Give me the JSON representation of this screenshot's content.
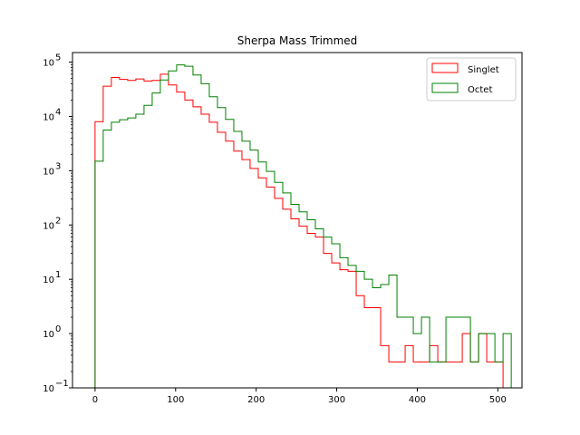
{
  "chart_data": {
    "type": "histogram",
    "title": "Sherpa Mass Trimmed",
    "xlabel": "",
    "ylabel": "",
    "x_ticks": [
      0,
      100,
      200,
      300,
      400,
      500
    ],
    "y_scale": "log",
    "y_ticks": [
      {
        "value": 0.1,
        "base": "10",
        "exp": "−1"
      },
      {
        "value": 1,
        "base": "10",
        "exp": "0"
      },
      {
        "value": 10,
        "base": "10",
        "exp": "1"
      },
      {
        "value": 100,
        "base": "10",
        "exp": "2"
      },
      {
        "value": 1000,
        "base": "10",
        "exp": "3"
      },
      {
        "value": 10000,
        "base": "10",
        "exp": "4"
      },
      {
        "value": 100000,
        "base": "10",
        "exp": "5"
      }
    ],
    "xlim": [
      -28,
      530
    ],
    "ylim": [
      0.1,
      150000
    ],
    "grid": false,
    "legend_position": "upper right",
    "bin_edges_start": 0,
    "bin_width": 10.13,
    "series": [
      {
        "name": "Singlet",
        "color": "#ff0000",
        "values": [
          8000,
          36000,
          52000,
          48000,
          46000,
          49000,
          45000,
          46000,
          60000,
          38000,
          28000,
          20000,
          15000,
          11000,
          7800,
          5100,
          3500,
          2300,
          1600,
          1100,
          740,
          500,
          310,
          195,
          130,
          95,
          70,
          60,
          30,
          20,
          15,
          14,
          5,
          3,
          3,
          0.6,
          0.3,
          0.3,
          0.6,
          0.3,
          0.3,
          0.6,
          0.3,
          0.3,
          0.3,
          1,
          0.3,
          1,
          0.3,
          0.3
        ]
      },
      {
        "name": "Octet",
        "color": "#008000",
        "values": [
          1500,
          5600,
          7800,
          8700,
          9400,
          11000,
          16000,
          27000,
          47000,
          69000,
          89000,
          84000,
          58000,
          40000,
          23000,
          14500,
          8800,
          5300,
          3500,
          2400,
          1450,
          970,
          610,
          390,
          240,
          175,
          125,
          85,
          60,
          45,
          25,
          18,
          14,
          10,
          7,
          8,
          12,
          2,
          2,
          1,
          2,
          0.3,
          0.3,
          2,
          2,
          2,
          0.3,
          1,
          1,
          0.3,
          1
        ]
      }
    ]
  }
}
